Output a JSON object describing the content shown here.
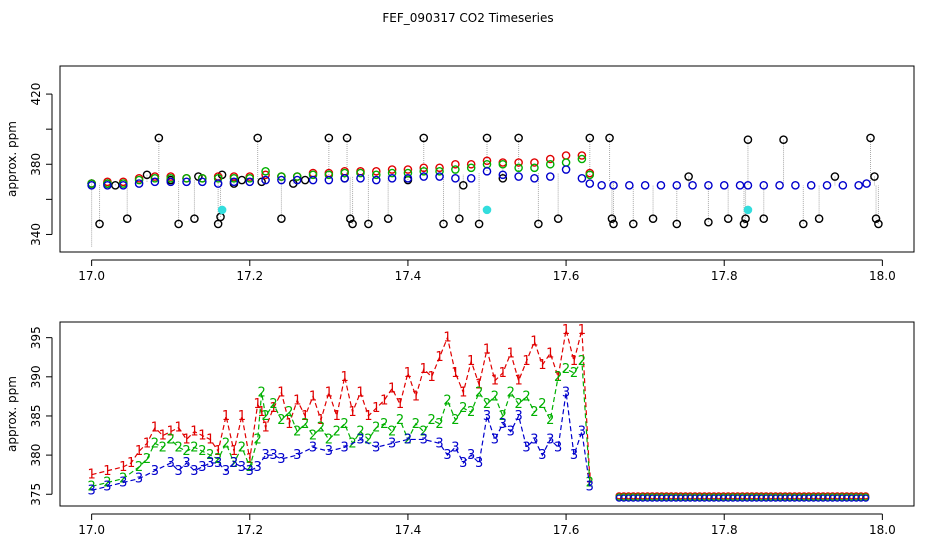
{
  "title": "FEF_090317  CO2 Timeseries",
  "colors": {
    "black": "#000000",
    "red": "#e00000",
    "green": "#00b000",
    "blue": "#0000cc",
    "cyan": "#33dddd",
    "gray": "#aaaaaa"
  },
  "chart_data": [
    {
      "type": "scatter",
      "ylabel": "approx. ppm",
      "xlabel": "",
      "xlim": [
        16.96,
        18.04
      ],
      "ylim": [
        330,
        436
      ],
      "x_ticks": [
        17.0,
        17.2,
        17.4,
        17.6,
        17.8,
        18.0
      ],
      "x_tick_labels": [
        "17.0",
        "17.2",
        "17.4",
        "17.6",
        "17.8",
        "18.0"
      ],
      "y_ticks": [
        340,
        380,
        420
      ],
      "y_tick_labels": [
        "340",
        "380",
        "420"
      ],
      "extra_y_ticks": [
        360,
        400
      ],
      "series": [
        {
          "name": "black",
          "color": "#000000",
          "x": [
            17.0,
            17.01,
            17.02,
            17.03,
            17.045,
            17.07,
            17.085,
            17.1,
            17.11,
            17.13,
            17.135,
            17.16,
            17.163,
            17.165,
            17.18,
            17.19,
            17.21,
            17.215,
            17.24,
            17.255,
            17.27,
            17.3,
            17.32,
            17.323,
            17.327,
            17.33,
            17.35,
            17.375,
            17.4,
            17.42,
            17.445,
            17.465,
            17.47,
            17.49,
            17.5,
            17.52,
            17.54,
            17.565,
            17.59,
            17.63,
            17.655,
            17.658,
            17.66,
            17.685,
            17.71,
            17.74,
            17.755,
            17.78,
            17.805,
            17.825,
            17.827,
            17.83,
            17.85,
            17.875,
            17.9,
            17.92,
            17.94,
            17.985,
            17.99,
            17.992,
            17.995
          ],
          "y": [
            369,
            346,
            369,
            368,
            349,
            374,
            395,
            371,
            346,
            349,
            373,
            346,
            350,
            374,
            369,
            371,
            395,
            370,
            349,
            369,
            371,
            395,
            372,
            395,
            349,
            346,
            346,
            349,
            371,
            395,
            346,
            349,
            368,
            346,
            395,
            372,
            395,
            346,
            349,
            395,
            395,
            349,
            346,
            346,
            349,
            346,
            373,
            347,
            349,
            346,
            349,
            394,
            349,
            394,
            346,
            349,
            373,
            395,
            373,
            349,
            346
          ],
          "line_to": [
            333,
            369,
            369,
            369,
            370,
            370,
            370,
            371,
            371,
            371,
            371,
            372,
            372,
            372,
            372,
            371,
            371,
            371,
            372,
            371,
            371,
            373,
            373,
            373,
            373,
            373,
            374,
            374,
            374,
            374,
            374,
            374,
            374,
            375,
            376,
            377,
            376,
            375,
            375,
            372,
            370,
            370,
            370,
            368,
            368,
            368,
            368,
            368,
            368,
            368,
            368,
            368,
            368,
            368,
            368,
            368,
            368,
            368,
            368,
            368,
            368
          ]
        },
        {
          "name": "red",
          "color": "#e00000",
          "x": [
            17.0,
            17.02,
            17.04,
            17.06,
            17.08,
            17.1,
            17.12,
            17.14,
            17.16,
            17.18,
            17.2,
            17.22,
            17.24,
            17.26,
            17.28,
            17.3,
            17.32,
            17.34,
            17.36,
            17.38,
            17.4,
            17.42,
            17.44,
            17.46,
            17.48,
            17.5,
            17.52,
            17.54,
            17.56,
            17.58,
            17.6,
            17.62,
            17.63
          ],
          "y": [
            369,
            370,
            370,
            372,
            373,
            373,
            372,
            372,
            373,
            373,
            373,
            374,
            373,
            373,
            375,
            375,
            376,
            376,
            376,
            377,
            377,
            378,
            378,
            380,
            380,
            382,
            381,
            381,
            381,
            383,
            385,
            385,
            375
          ]
        },
        {
          "name": "green",
          "color": "#00b000",
          "x": [
            17.0,
            17.02,
            17.04,
            17.06,
            17.08,
            17.1,
            17.12,
            17.14,
            17.16,
            17.18,
            17.2,
            17.22,
            17.24,
            17.26,
            17.28,
            17.3,
            17.32,
            17.34,
            17.36,
            17.38,
            17.4,
            17.42,
            17.44,
            17.46,
            17.48,
            17.5,
            17.52,
            17.54,
            17.56,
            17.58,
            17.6,
            17.62,
            17.63
          ],
          "y": [
            369,
            369,
            369,
            371,
            372,
            372,
            372,
            372,
            372,
            372,
            372,
            376,
            373,
            373,
            374,
            374,
            375,
            375,
            374,
            375,
            375,
            376,
            376,
            377,
            378,
            380,
            380,
            378,
            378,
            380,
            381,
            383,
            374
          ]
        },
        {
          "name": "blue",
          "color": "#0000cc",
          "x": [
            17.0,
            17.02,
            17.04,
            17.06,
            17.08,
            17.1,
            17.12,
            17.14,
            17.16,
            17.18,
            17.2,
            17.22,
            17.24,
            17.26,
            17.28,
            17.3,
            17.32,
            17.34,
            17.36,
            17.38,
            17.4,
            17.42,
            17.44,
            17.46,
            17.48,
            17.5,
            17.52,
            17.54,
            17.56,
            17.58,
            17.6,
            17.62,
            17.63,
            17.645,
            17.66,
            17.68,
            17.7,
            17.72,
            17.74,
            17.76,
            17.78,
            17.8,
            17.82,
            17.83,
            17.85,
            17.87,
            17.89,
            17.91,
            17.93,
            17.95,
            17.97,
            17.98
          ],
          "y": [
            368,
            368,
            368,
            369,
            370,
            370,
            370,
            370,
            369,
            370,
            370,
            371,
            371,
            371,
            371,
            371,
            372,
            372,
            371,
            372,
            372,
            373,
            373,
            372,
            372,
            376,
            374,
            373,
            372,
            373,
            377,
            372,
            369,
            368,
            368,
            368,
            368,
            368,
            368,
            368,
            368,
            368,
            368,
            368,
            368,
            368,
            368,
            368,
            368,
            368,
            368,
            369
          ]
        },
        {
          "name": "cyan",
          "color": "#33dddd",
          "x": [
            17.165,
            17.5,
            17.83
          ],
          "y": [
            354,
            354,
            354
          ]
        }
      ]
    },
    {
      "type": "line",
      "ylabel": "approx. ppm",
      "xlabel": "",
      "xlim": [
        16.96,
        18.04
      ],
      "ylim": [
        373.5,
        397
      ],
      "x_ticks": [
        17.0,
        17.2,
        17.4,
        17.6,
        17.8,
        18.0
      ],
      "x_tick_labels": [
        "17.0",
        "17.2",
        "17.4",
        "17.6",
        "17.8",
        "18.0"
      ],
      "y_ticks": [
        375,
        380,
        385,
        390,
        395
      ],
      "y_tick_labels": [
        "375",
        "380",
        "385",
        "390",
        "395"
      ],
      "series": [
        {
          "name": "1",
          "marker": "1",
          "color": "#e00000",
          "x": [
            17.0,
            17.02,
            17.04,
            17.05,
            17.06,
            17.07,
            17.08,
            17.09,
            17.1,
            17.11,
            17.12,
            17.13,
            17.14,
            17.15,
            17.16,
            17.17,
            17.18,
            17.19,
            17.2,
            17.21,
            17.215,
            17.22,
            17.23,
            17.24,
            17.25,
            17.26,
            17.27,
            17.28,
            17.29,
            17.3,
            17.31,
            17.32,
            17.33,
            17.34,
            17.35,
            17.36,
            17.37,
            17.38,
            17.39,
            17.4,
            17.41,
            17.42,
            17.43,
            17.44,
            17.45,
            17.46,
            17.47,
            17.48,
            17.49,
            17.5,
            17.51,
            17.52,
            17.53,
            17.54,
            17.55,
            17.56,
            17.57,
            17.58,
            17.59,
            17.6,
            17.61,
            17.62,
            17.63
          ],
          "y": [
            377.5,
            378,
            378.5,
            379,
            380.5,
            381.5,
            383.5,
            382.5,
            383,
            383.5,
            382,
            383,
            382.5,
            382,
            380.5,
            385,
            380.5,
            385,
            379.5,
            386.5,
            385.5,
            383.5,
            386,
            388,
            384,
            387,
            385,
            387.5,
            384.5,
            388,
            385,
            390,
            385.5,
            388,
            385,
            386,
            387,
            388.5,
            386.5,
            390.5,
            387.5,
            391,
            390,
            392.5,
            395,
            390.5,
            388,
            392,
            389,
            393.5,
            389.5,
            390.5,
            393,
            389.5,
            392,
            394.5,
            391.5,
            393,
            390,
            396,
            392,
            396,
            377
          ]
        },
        {
          "name": "2",
          "marker": "2",
          "color": "#00b000",
          "x": [
            17.0,
            17.02,
            17.04,
            17.06,
            17.07,
            17.08,
            17.09,
            17.1,
            17.11,
            17.12,
            17.13,
            17.14,
            17.15,
            17.16,
            17.17,
            17.18,
            17.19,
            17.2,
            17.21,
            17.215,
            17.22,
            17.23,
            17.24,
            17.25,
            17.26,
            17.27,
            17.28,
            17.29,
            17.3,
            17.31,
            17.32,
            17.33,
            17.34,
            17.35,
            17.36,
            17.37,
            17.38,
            17.39,
            17.4,
            17.41,
            17.42,
            17.43,
            17.44,
            17.45,
            17.46,
            17.47,
            17.48,
            17.49,
            17.5,
            17.51,
            17.52,
            17.53,
            17.54,
            17.55,
            17.56,
            17.57,
            17.58,
            17.59,
            17.6,
            17.61,
            17.62,
            17.63
          ],
          "y": [
            376,
            376.5,
            377,
            378.5,
            379.5,
            381.5,
            381,
            382,
            381,
            380.5,
            381,
            380.5,
            380,
            379.5,
            381.5,
            379,
            381,
            378.5,
            382,
            388,
            385,
            386.5,
            384.5,
            385.5,
            383,
            384,
            382.5,
            383.5,
            382,
            383,
            384,
            381.5,
            383,
            382,
            383.5,
            384,
            383,
            384.5,
            382,
            384,
            383,
            384.5,
            384,
            387,
            384.5,
            386,
            385.5,
            388,
            386.5,
            387.5,
            385,
            388,
            386.5,
            387.5,
            385.5,
            386.5,
            384.5,
            390,
            391,
            390.5,
            392,
            376.5
          ]
        },
        {
          "name": "3",
          "marker": "3",
          "color": "#0000cc",
          "x": [
            17.0,
            17.02,
            17.04,
            17.06,
            17.08,
            17.1,
            17.11,
            17.12,
            17.13,
            17.14,
            17.15,
            17.16,
            17.17,
            17.18,
            17.19,
            17.2,
            17.21,
            17.22,
            17.23,
            17.24,
            17.26,
            17.28,
            17.3,
            17.32,
            17.34,
            17.36,
            17.38,
            17.4,
            17.42,
            17.44,
            17.45,
            17.46,
            17.47,
            17.48,
            17.49,
            17.5,
            17.51,
            17.52,
            17.53,
            17.54,
            17.55,
            17.56,
            17.57,
            17.58,
            17.59,
            17.6,
            17.61,
            17.62,
            17.63
          ],
          "y": [
            375.5,
            376,
            376.5,
            377,
            378,
            379,
            378,
            379,
            378,
            378.5,
            379,
            379,
            378,
            379,
            378.5,
            378,
            378.5,
            380,
            380,
            379.5,
            380,
            381,
            380.5,
            381,
            382,
            381,
            381.5,
            382,
            382,
            381.5,
            380,
            381,
            379,
            380,
            379,
            385,
            382,
            384,
            383,
            385,
            381,
            382,
            380,
            382,
            381,
            388,
            380,
            383,
            376
          ]
        }
      ],
      "overlap_markers": {
        "x_start": 17.667,
        "x_end": 17.982,
        "y": 374.8
      }
    }
  ]
}
